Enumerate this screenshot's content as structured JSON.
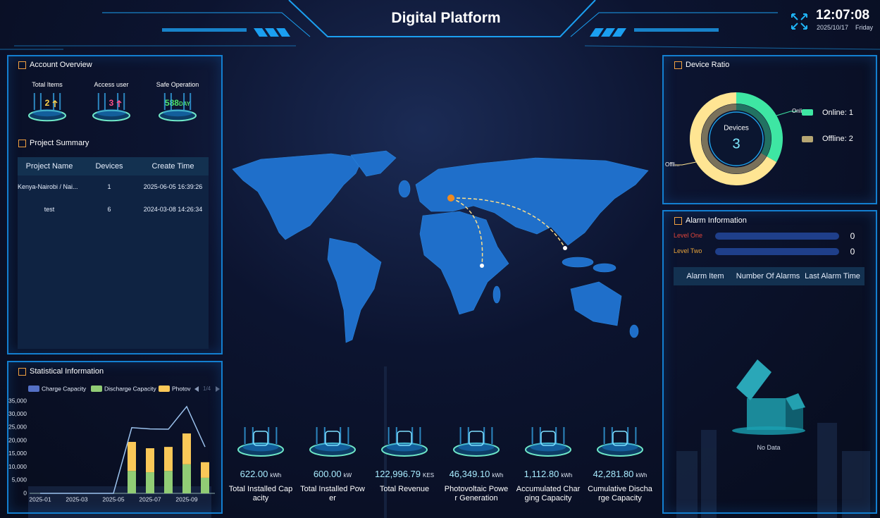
{
  "header": {
    "title": "Digital Platform",
    "time": "12:07:08",
    "date": "2025/10/17",
    "weekday": "Friday"
  },
  "account_overview": {
    "title": "Account Overview",
    "items": [
      {
        "label": "Total Items",
        "value": "2"
      },
      {
        "label": "Access user",
        "value": "3"
      },
      {
        "label": "Safe Operation",
        "value": "588",
        "unit": "DAY"
      }
    ]
  },
  "project_summary": {
    "title": "Project Summary",
    "columns": [
      "Project Name",
      "Devices",
      "Create Time"
    ],
    "rows": [
      [
        "Kenya-Nairobi / Nai...",
        "1",
        "2025-06-05 16:39:26"
      ],
      [
        "test",
        "6",
        "2024-03-08 14:26:34"
      ]
    ]
  },
  "chart_data": [
    {
      "type": "bar",
      "title": "Statistical Information",
      "stacked": true,
      "legend_page": "1/4",
      "categories": [
        "2025-01",
        null,
        "2025-03",
        null,
        "2025-05",
        null,
        "2025-07",
        null,
        "2025-09",
        null
      ],
      "series": [
        {
          "name": "Charge Capacity",
          "color": "#5470c6",
          "values": [
            0,
            0,
            0,
            0,
            0,
            0,
            0,
            0,
            0,
            0
          ]
        },
        {
          "name": "Discharge Capacity",
          "color": "#91cc75",
          "values": [
            0,
            0,
            0,
            0,
            0,
            8500,
            8000,
            8500,
            11000,
            5900
          ]
        },
        {
          "name": "Photov",
          "color": "#fac858",
          "values": [
            0,
            0,
            0,
            0,
            0,
            11000,
            9100,
            9100,
            11700,
            5900
          ]
        },
        {
          "type": "line",
          "color": "#9cc3ee",
          "values": [
            0,
            0,
            0,
            0,
            0,
            24900,
            24400,
            24300,
            32900,
            17600
          ]
        }
      ],
      "ylim": [
        0,
        35000
      ],
      "yticks": [
        0,
        {
          "value": 5000,
          "label": "5,000"
        },
        {
          "value": 10000,
          "label": "10,000"
        },
        {
          "value": 15000,
          "label": "15,000"
        },
        {
          "value": 20000,
          "label": "20,000"
        },
        {
          "value": 25000,
          "label": "25,000"
        },
        {
          "value": 30000,
          "label": "30,000"
        },
        {
          "value": 35000,
          "label": "35,000"
        }
      ],
      "grid": false
    },
    {
      "type": "pie",
      "title": "Device Ratio",
      "donut": true,
      "categories": [
        "Online",
        "Offline"
      ],
      "values": [
        1,
        2
      ],
      "colors": [
        "#3ee6a3",
        "#ffe593"
      ],
      "leader_labels": [
        "Online",
        "Offli..."
      ],
      "legend_labels": [
        "Online: 1",
        "Offline: 2"
      ],
      "center_label": "Devices",
      "total": 3
    }
  ],
  "alarm_information": {
    "title": "Alarm Information",
    "levels": [
      {
        "label": "Level One",
        "value": 0,
        "color": "#e0443a"
      },
      {
        "label": "Level Two",
        "value": 0,
        "color": "#e8a33a"
      }
    ],
    "columns": [
      "Alarm Item",
      "Number Of Alarms",
      "Last Alarm Time"
    ],
    "empty": "No Data"
  },
  "stats": [
    {
      "value": "622.00",
      "unit": "kWh",
      "label": "Total Installed Capacity"
    },
    {
      "value": "600.00",
      "unit": "kW",
      "label": "Total Installed Power"
    },
    {
      "value": "122,996.79",
      "unit": "KES",
      "label": "Total Revenue"
    },
    {
      "value": "46,349.10",
      "unit": "kWh",
      "label": "Photovoltaic Power Generation"
    },
    {
      "value": "1,112.80",
      "unit": "kWh",
      "label": "Accumulated Charging Capacity"
    },
    {
      "value": "42,281.80",
      "unit": "kWh",
      "label": "Cumulative Discharge Capacity"
    }
  ]
}
